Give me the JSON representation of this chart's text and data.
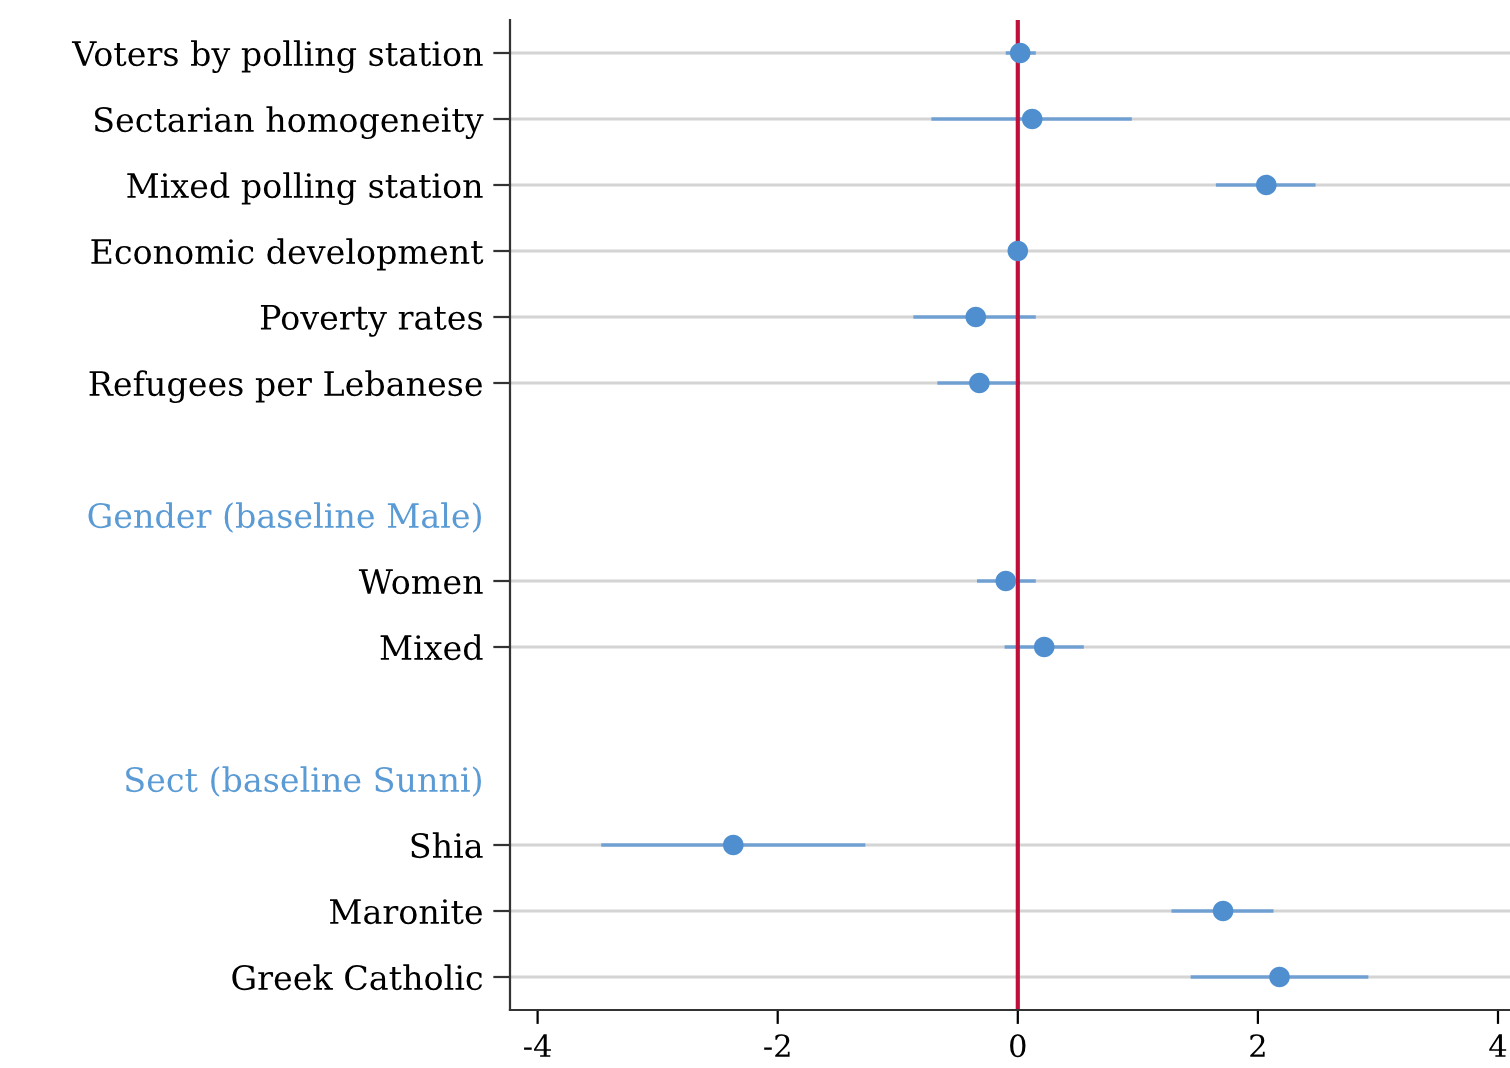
{
  "chart_data": {
    "type": "scatter",
    "orientation": "horizontal",
    "categories": [
      "Voters by polling station",
      "Sectarian homogeneity",
      "Mixed polling station",
      "Economic development",
      "Poverty rates",
      "Refugees per Lebanese",
      null,
      "Gender (baseline Male)",
      "Women",
      "Mixed",
      null,
      "Sect (baseline Sunni)",
      "Shia",
      "Maronite",
      "Greek Catholic"
    ],
    "series": [
      {
        "color": "#4f8fd0",
        "values": [
          0.02,
          0.12,
          2.07,
          0.0,
          -0.35,
          -0.32,
          null,
          null,
          -0.1,
          0.22,
          null,
          null,
          -2.37,
          1.71,
          2.18
        ],
        "errors": [
          [
            -0.1,
            0.15
          ],
          [
            -0.72,
            0.95
          ],
          [
            1.65,
            2.48
          ],
          null,
          [
            -0.87,
            0.15
          ],
          [
            -0.67,
            0.02
          ],
          null,
          null,
          [
            -0.34,
            0.15
          ],
          [
            -0.11,
            0.55
          ],
          null,
          null,
          [
            -3.47,
            -1.27
          ],
          [
            1.28,
            2.13
          ],
          [
            1.44,
            2.92
          ]
        ]
      }
    ],
    "xlim": [
      -4.23,
      4.1
    ],
    "xticks": [
      {
        "value": -4,
        "label": "-4"
      },
      {
        "value": -2,
        "label": "-2"
      },
      0,
      2,
      4
    ],
    "ref_lines": [
      {
        "axis": "x",
        "value": 0,
        "color": "#c0103a"
      }
    ],
    "grid": "y",
    "marker": "circle",
    "legend": false
  }
}
